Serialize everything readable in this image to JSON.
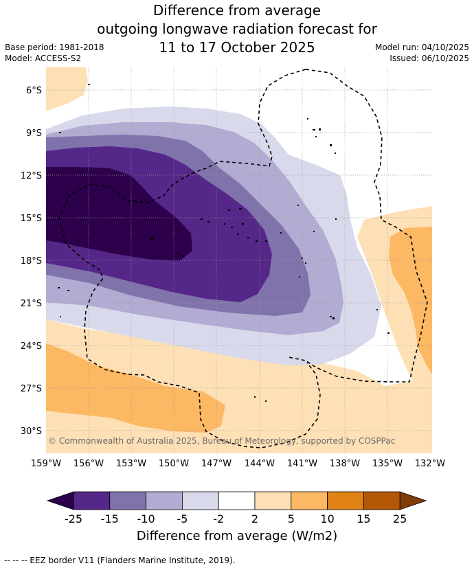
{
  "title": {
    "line1": "Difference from average",
    "line2": "outgoing longwave radiation forecast for",
    "line3": "11 to 17 October 2025"
  },
  "meta": {
    "base_period": "Base period: 1981-2018",
    "model": "Model: ACCESS-S2",
    "model_run": "Model run: 04/10/2025",
    "issued": "Issued: 06/10/2025"
  },
  "axes": {
    "lon_ticks": [
      "159°W",
      "156°W",
      "153°W",
      "150°W",
      "147°W",
      "144°W",
      "141°W",
      "138°W",
      "135°W",
      "132°W"
    ],
    "lat_ticks": [
      "6°S",
      "9°S",
      "12°S",
      "15°S",
      "18°S",
      "21°S",
      "24°S",
      "27°S",
      "30°S"
    ]
  },
  "copyright": "© Commonwealth of Australia 2025, Bureau of Meteorology, supported by COSPPac",
  "colorbar": {
    "tick_labels": [
      "-25",
      "-15",
      "-10",
      "-5",
      "-2",
      "2",
      "5",
      "10",
      "15",
      "25"
    ],
    "unit_label": "Difference from average (W/m2)",
    "colors": {
      "under": "#2d004b",
      "bins": [
        "#542788",
        "#8073ac",
        "#b2abd2",
        "#d8daeb",
        "#ffffff",
        "#fee0b6",
        "#fdb863",
        "#e08214",
        "#b35806"
      ],
      "over": "#7f3b08"
    }
  },
  "footnote": "--  --  -- EEZ border V11 (Flanders Marine Institute, 2019)."
}
